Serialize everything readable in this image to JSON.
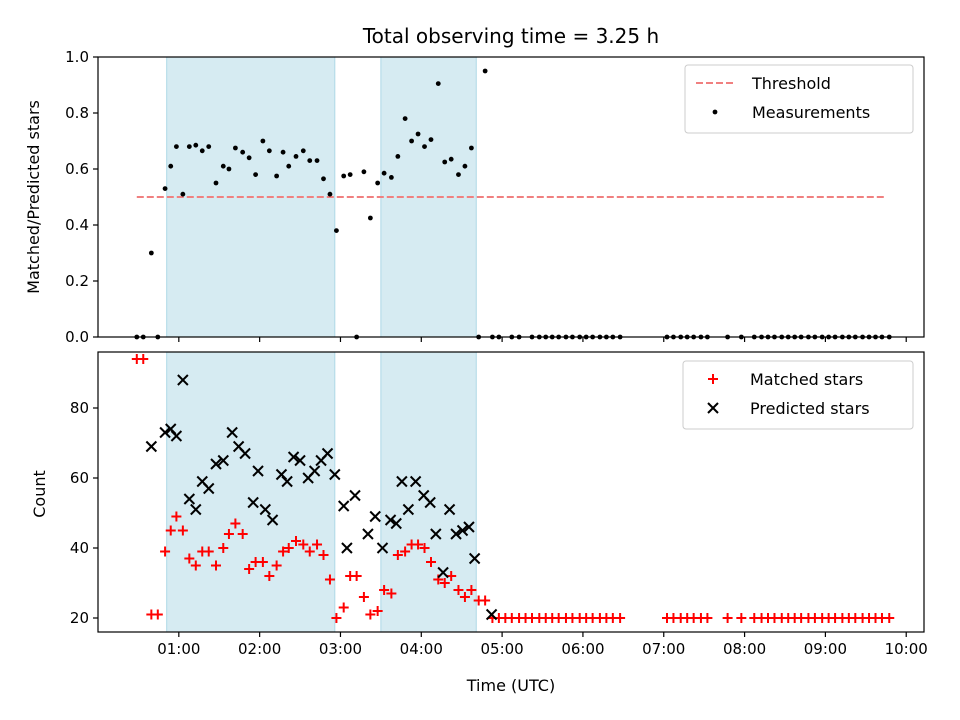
{
  "chart_data": {
    "type": "scatter",
    "title": "Total observing time = 3.25 h",
    "xlabel": "Time (UTC)",
    "x_ticks": [
      1,
      2,
      3,
      4,
      5,
      6,
      7,
      8,
      9,
      10
    ],
    "x_tick_labels": [
      "01:00",
      "02:00",
      "03:00",
      "04:00",
      "05:00",
      "06:00",
      "07:00",
      "08:00",
      "09:00",
      "10:00"
    ],
    "xlim": [
      0.0,
      10.22
    ],
    "observing_windows": [
      [
        0.85,
        2.93
      ],
      [
        3.5,
        4.68
      ]
    ],
    "top_panel": {
      "ylabel": "Matched/Predicted stars",
      "ylim": [
        0,
        1.0
      ],
      "y_ticks": [
        0.0,
        0.2,
        0.4,
        0.6,
        0.8,
        1.0
      ],
      "y_tick_labels": [
        "0.0",
        "0.2",
        "0.4",
        "0.6",
        "0.8",
        "1.0"
      ],
      "threshold": {
        "value": 0.5,
        "x_range": [
          0.48,
          9.75
        ],
        "color": "#f08080"
      },
      "legend": {
        "position": "top-right",
        "entries": [
          "Threshold",
          "Measurements"
        ]
      },
      "series": [
        {
          "name": "Measurements",
          "color": "#000000",
          "points": [
            [
              0.48,
              0
            ],
            [
              0.56,
              0
            ],
            [
              0.66,
              0.3
            ],
            [
              0.74,
              0
            ],
            [
              0.83,
              0.53
            ],
            [
              0.9,
              0.61
            ],
            [
              0.97,
              0.68
            ],
            [
              1.05,
              0.51
            ],
            [
              1.13,
              0.68
            ],
            [
              1.21,
              0.685
            ],
            [
              1.29,
              0.665
            ],
            [
              1.37,
              0.68
            ],
            [
              1.46,
              0.55
            ],
            [
              1.55,
              0.61
            ],
            [
              1.62,
              0.6
            ],
            [
              1.7,
              0.675
            ],
            [
              1.79,
              0.66
            ],
            [
              1.87,
              0.64
            ],
            [
              1.95,
              0.58
            ],
            [
              2.04,
              0.7
            ],
            [
              2.12,
              0.665
            ],
            [
              2.21,
              0.575
            ],
            [
              2.29,
              0.66
            ],
            [
              2.36,
              0.61
            ],
            [
              2.45,
              0.645
            ],
            [
              2.54,
              0.665
            ],
            [
              2.62,
              0.63
            ],
            [
              2.71,
              0.63
            ],
            [
              2.79,
              0.565
            ],
            [
              2.87,
              0.51
            ],
            [
              2.95,
              0.38
            ],
            [
              3.04,
              0.575
            ],
            [
              3.12,
              0.58
            ],
            [
              3.2,
              0
            ],
            [
              3.29,
              0.59
            ],
            [
              3.37,
              0.425
            ],
            [
              3.46,
              0.55
            ],
            [
              3.54,
              0.585
            ],
            [
              3.63,
              0.57
            ],
            [
              3.71,
              0.645
            ],
            [
              3.8,
              0.78
            ],
            [
              3.88,
              0.7
            ],
            [
              3.96,
              0.725
            ],
            [
              4.04,
              0.68
            ],
            [
              4.12,
              0.705
            ],
            [
              4.21,
              0.905
            ],
            [
              4.29,
              0.625
            ],
            [
              4.37,
              0.635
            ],
            [
              4.46,
              0.58
            ],
            [
              4.54,
              0.61
            ],
            [
              4.62,
              0.675
            ],
            [
              4.71,
              0
            ],
            [
              4.79,
              0.95
            ],
            [
              4.88,
              0
            ],
            [
              4.96,
              0
            ],
            [
              5.12,
              0
            ],
            [
              5.21,
              0
            ],
            [
              5.37,
              0
            ],
            [
              5.46,
              0
            ],
            [
              5.54,
              0
            ],
            [
              5.62,
              0
            ],
            [
              5.7,
              0
            ],
            [
              5.79,
              0
            ],
            [
              5.87,
              0
            ],
            [
              5.96,
              0
            ],
            [
              6.04,
              0
            ],
            [
              6.12,
              0
            ],
            [
              6.21,
              0
            ],
            [
              6.29,
              0
            ],
            [
              6.37,
              0
            ],
            [
              6.46,
              0
            ],
            [
              7.04,
              0
            ],
            [
              7.12,
              0
            ],
            [
              7.21,
              0
            ],
            [
              7.29,
              0
            ],
            [
              7.37,
              0
            ],
            [
              7.46,
              0
            ],
            [
              7.54,
              0
            ],
            [
              7.79,
              0
            ],
            [
              7.96,
              0
            ],
            [
              8.12,
              0
            ],
            [
              8.21,
              0
            ],
            [
              8.29,
              0
            ],
            [
              8.37,
              0
            ],
            [
              8.46,
              0
            ],
            [
              8.54,
              0
            ],
            [
              8.62,
              0
            ],
            [
              8.7,
              0
            ],
            [
              8.79,
              0
            ],
            [
              8.87,
              0
            ],
            [
              8.96,
              0
            ],
            [
              9.04,
              0
            ],
            [
              9.12,
              0
            ],
            [
              9.21,
              0
            ],
            [
              9.29,
              0
            ],
            [
              9.37,
              0
            ],
            [
              9.46,
              0
            ],
            [
              9.54,
              0
            ],
            [
              9.62,
              0
            ],
            [
              9.7,
              0
            ],
            [
              9.79,
              0
            ]
          ]
        }
      ]
    },
    "bottom_panel": {
      "ylabel": "Count",
      "ylim": [
        16,
        96
      ],
      "y_ticks": [
        20,
        40,
        60,
        80
      ],
      "y_tick_labels": [
        "20",
        "40",
        "60",
        "80"
      ],
      "legend": {
        "position": "top-right",
        "entries": [
          "Matched stars",
          "Predicted stars"
        ]
      },
      "series": [
        {
          "name": "Matched stars",
          "marker": "plus",
          "color": "#ff0000",
          "points": [
            [
              0.48,
              94
            ],
            [
              0.56,
              94
            ],
            [
              0.66,
              21
            ],
            [
              0.74,
              21
            ],
            [
              0.83,
              39
            ],
            [
              0.9,
              45
            ],
            [
              0.97,
              49
            ],
            [
              1.05,
              45
            ],
            [
              1.13,
              37
            ],
            [
              1.21,
              35
            ],
            [
              1.29,
              39
            ],
            [
              1.37,
              39
            ],
            [
              1.46,
              35
            ],
            [
              1.55,
              40
            ],
            [
              1.62,
              44
            ],
            [
              1.7,
              47
            ],
            [
              1.79,
              44
            ],
            [
              1.87,
              34
            ],
            [
              1.95,
              36
            ],
            [
              2.04,
              36
            ],
            [
              2.12,
              32
            ],
            [
              2.21,
              35
            ],
            [
              2.29,
              39
            ],
            [
              2.36,
              40
            ],
            [
              2.45,
              42
            ],
            [
              2.54,
              41
            ],
            [
              2.62,
              39
            ],
            [
              2.71,
              41
            ],
            [
              2.79,
              38
            ],
            [
              2.87,
              31
            ],
            [
              2.95,
              20
            ],
            [
              3.04,
              23
            ],
            [
              3.12,
              32
            ],
            [
              3.2,
              32
            ],
            [
              3.29,
              26
            ],
            [
              3.37,
              21
            ],
            [
              3.46,
              22
            ],
            [
              3.54,
              28
            ],
            [
              3.63,
              27
            ],
            [
              3.71,
              38
            ],
            [
              3.8,
              39
            ],
            [
              3.88,
              41
            ],
            [
              3.96,
              41
            ],
            [
              4.04,
              40
            ],
            [
              4.12,
              36
            ],
            [
              4.21,
              31
            ],
            [
              4.29,
              30
            ],
            [
              4.37,
              32
            ],
            [
              4.46,
              28
            ],
            [
              4.54,
              26
            ],
            [
              4.62,
              28
            ],
            [
              4.71,
              25
            ],
            [
              4.79,
              25
            ],
            [
              4.88,
              20
            ],
            [
              4.96,
              20
            ],
            [
              5.04,
              20
            ],
            [
              5.12,
              20
            ],
            [
              5.21,
              20
            ],
            [
              5.29,
              20
            ],
            [
              5.37,
              20
            ],
            [
              5.46,
              20
            ],
            [
              5.54,
              20
            ],
            [
              5.62,
              20
            ],
            [
              5.7,
              20
            ],
            [
              5.79,
              20
            ],
            [
              5.87,
              20
            ],
            [
              5.96,
              20
            ],
            [
              6.04,
              20
            ],
            [
              6.12,
              20
            ],
            [
              6.21,
              20
            ],
            [
              6.29,
              20
            ],
            [
              6.37,
              20
            ],
            [
              6.46,
              20
            ],
            [
              7.04,
              20
            ],
            [
              7.12,
              20
            ],
            [
              7.21,
              20
            ],
            [
              7.29,
              20
            ],
            [
              7.37,
              20
            ],
            [
              7.46,
              20
            ],
            [
              7.54,
              20
            ],
            [
              7.79,
              20
            ],
            [
              7.96,
              20
            ],
            [
              8.12,
              20
            ],
            [
              8.21,
              20
            ],
            [
              8.29,
              20
            ],
            [
              8.37,
              20
            ],
            [
              8.46,
              20
            ],
            [
              8.54,
              20
            ],
            [
              8.62,
              20
            ],
            [
              8.7,
              20
            ],
            [
              8.79,
              20
            ],
            [
              8.87,
              20
            ],
            [
              8.96,
              20
            ],
            [
              9.04,
              20
            ],
            [
              9.12,
              20
            ],
            [
              9.21,
              20
            ],
            [
              9.29,
              20
            ],
            [
              9.37,
              20
            ],
            [
              9.46,
              20
            ],
            [
              9.54,
              20
            ],
            [
              9.62,
              20
            ],
            [
              9.7,
              20
            ],
            [
              9.79,
              20
            ]
          ]
        },
        {
          "name": "Predicted stars",
          "marker": "x",
          "color": "#000000",
          "points": [
            [
              0.66,
              69
            ],
            [
              0.83,
              73
            ],
            [
              0.9,
              74
            ],
            [
              0.97,
              72
            ],
            [
              1.05,
              88
            ],
            [
              1.13,
              54
            ],
            [
              1.21,
              51
            ],
            [
              1.29,
              59
            ],
            [
              1.37,
              57
            ],
            [
              1.46,
              64
            ],
            [
              1.55,
              65
            ],
            [
              1.66,
              73
            ],
            [
              1.74,
              69
            ],
            [
              1.82,
              67
            ],
            [
              1.92,
              53
            ],
            [
              1.98,
              62
            ],
            [
              2.07,
              51
            ],
            [
              2.16,
              48
            ],
            [
              2.27,
              61
            ],
            [
              2.34,
              59
            ],
            [
              2.42,
              66
            ],
            [
              2.5,
              65
            ],
            [
              2.6,
              60
            ],
            [
              2.68,
              62
            ],
            [
              2.76,
              65
            ],
            [
              2.84,
              67
            ],
            [
              2.93,
              61
            ],
            [
              3.04,
              52
            ],
            [
              3.08,
              40
            ],
            [
              3.18,
              55
            ],
            [
              3.34,
              44
            ],
            [
              3.43,
              49
            ],
            [
              3.52,
              40
            ],
            [
              3.62,
              48
            ],
            [
              3.69,
              47
            ],
            [
              3.76,
              59
            ],
            [
              3.84,
              51
            ],
            [
              3.93,
              59
            ],
            [
              4.03,
              55
            ],
            [
              4.11,
              53
            ],
            [
              4.18,
              44
            ],
            [
              4.27,
              33
            ],
            [
              4.35,
              51
            ],
            [
              4.43,
              44
            ],
            [
              4.51,
              45
            ],
            [
              4.59,
              46
            ],
            [
              4.66,
              37
            ],
            [
              4.87,
              21
            ]
          ]
        }
      ]
    }
  }
}
